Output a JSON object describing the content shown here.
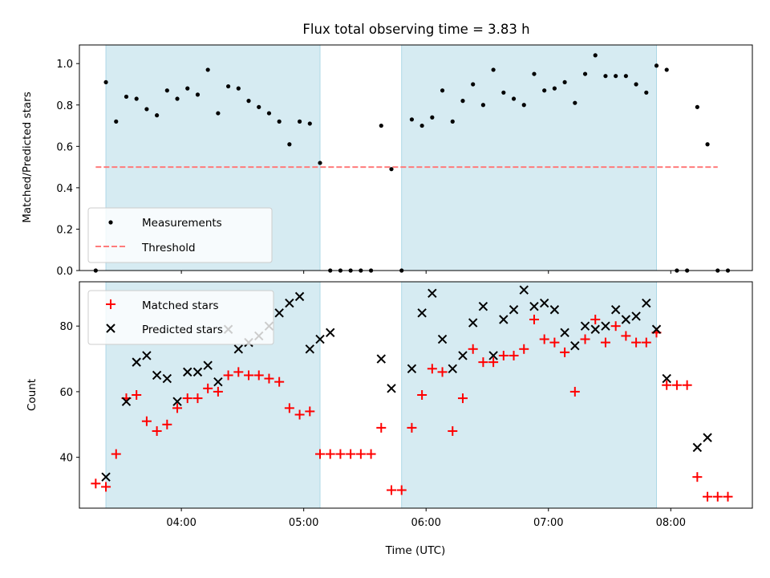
{
  "chart_data": {
    "type": "scatter",
    "title": "Flux total observing time = 3.83 h",
    "xlabel": "Time (UTC)",
    "x_tick_labels": [
      "04:00",
      "05:00",
      "06:00",
      "07:00",
      "08:00"
    ],
    "x_range": [
      "03:10",
      "08:40"
    ],
    "shaded_intervals": [
      [
        "03:23",
        "05:08"
      ],
      [
        "05:48",
        "07:53"
      ]
    ],
    "shade_color": "#add8e6",
    "panels": [
      {
        "ylabel": "Matched/Predicted stars",
        "ylim": [
          0,
          1.09
        ],
        "y_tick_labels": [
          "0.0",
          "0.2",
          "0.4",
          "0.6",
          "0.8",
          "1.0"
        ],
        "legend": {
          "position": "lower left",
          "entries": [
            "Measurements",
            "Threshold"
          ]
        },
        "threshold": {
          "name": "Threshold",
          "value": 0.5,
          "x_from": "03:18",
          "x_to": "08:23",
          "color": "#ff7b7b"
        },
        "series": [
          {
            "name": "Measurements",
            "marker": "dot",
            "color": "#000000",
            "points": [
              [
                "03:18",
                0.0
              ],
              [
                "03:23",
                0.91
              ],
              [
                "03:28",
                0.72
              ],
              [
                "03:33",
                0.84
              ],
              [
                "03:38",
                0.83
              ],
              [
                "03:43",
                0.78
              ],
              [
                "03:48",
                0.75
              ],
              [
                "03:53",
                0.87
              ],
              [
                "03:58",
                0.83
              ],
              [
                "04:03",
                0.88
              ],
              [
                "04:08",
                0.85
              ],
              [
                "04:13",
                0.97
              ],
              [
                "04:18",
                0.76
              ],
              [
                "04:23",
                0.89
              ],
              [
                "04:28",
                0.88
              ],
              [
                "04:33",
                0.82
              ],
              [
                "04:38",
                0.79
              ],
              [
                "04:43",
                0.76
              ],
              [
                "04:48",
                0.72
              ],
              [
                "04:53",
                0.61
              ],
              [
                "04:58",
                0.72
              ],
              [
                "05:03",
                0.71
              ],
              [
                "05:08",
                0.52
              ],
              [
                "05:13",
                0.0
              ],
              [
                "05:18",
                0.0
              ],
              [
                "05:23",
                0.0
              ],
              [
                "05:28",
                0.0
              ],
              [
                "05:33",
                0.0
              ],
              [
                "05:38",
                0.7
              ],
              [
                "05:43",
                0.49
              ],
              [
                "05:48",
                0.0
              ],
              [
                "05:53",
                0.73
              ],
              [
                "05:58",
                0.7
              ],
              [
                "06:03",
                0.74
              ],
              [
                "06:08",
                0.87
              ],
              [
                "06:13",
                0.72
              ],
              [
                "06:18",
                0.82
              ],
              [
                "06:23",
                0.9
              ],
              [
                "06:28",
                0.8
              ],
              [
                "06:33",
                0.97
              ],
              [
                "06:38",
                0.86
              ],
              [
                "06:43",
                0.83
              ],
              [
                "06:48",
                0.8
              ],
              [
                "06:53",
                0.95
              ],
              [
                "06:58",
                0.87
              ],
              [
                "07:03",
                0.88
              ],
              [
                "07:08",
                0.91
              ],
              [
                "07:13",
                0.81
              ],
              [
                "07:18",
                0.95
              ],
              [
                "07:23",
                1.04
              ],
              [
                "07:28",
                0.94
              ],
              [
                "07:33",
                0.94
              ],
              [
                "07:38",
                0.94
              ],
              [
                "07:43",
                0.9
              ],
              [
                "07:48",
                0.86
              ],
              [
                "07:53",
                0.99
              ],
              [
                "07:58",
                0.97
              ],
              [
                "08:03",
                0.0
              ],
              [
                "08:08",
                0.0
              ],
              [
                "08:13",
                0.79
              ],
              [
                "08:18",
                0.61
              ],
              [
                "08:23",
                0.0
              ],
              [
                "08:28",
                0.0
              ]
            ]
          }
        ]
      },
      {
        "ylabel": "Count",
        "ylim": [
          24.5,
          93.5
        ],
        "y_tick_labels": [
          "40",
          "60",
          "80"
        ],
        "legend": {
          "position": "upper left",
          "entries": [
            "Matched stars",
            "Predicted stars"
          ]
        },
        "series": [
          {
            "name": "Matched stars",
            "marker": "plus",
            "color": "#ff0000",
            "points": [
              [
                "03:18",
                32
              ],
              [
                "03:23",
                31
              ],
              [
                "03:28",
                41
              ],
              [
                "03:33",
                58
              ],
              [
                "03:38",
                59
              ],
              [
                "03:43",
                51
              ],
              [
                "03:48",
                48
              ],
              [
                "03:53",
                50
              ],
              [
                "03:58",
                55
              ],
              [
                "04:03",
                58
              ],
              [
                "04:08",
                58
              ],
              [
                "04:13",
                61
              ],
              [
                "04:18",
                60
              ],
              [
                "04:23",
                65
              ],
              [
                "04:28",
                66
              ],
              [
                "04:33",
                65
              ],
              [
                "04:38",
                65
              ],
              [
                "04:43",
                64
              ],
              [
                "04:48",
                63
              ],
              [
                "04:53",
                55
              ],
              [
                "04:58",
                53
              ],
              [
                "05:03",
                54
              ],
              [
                "05:08",
                41
              ],
              [
                "05:13",
                41
              ],
              [
                "05:18",
                41
              ],
              [
                "05:23",
                41
              ],
              [
                "05:28",
                41
              ],
              [
                "05:33",
                41
              ],
              [
                "05:38",
                49
              ],
              [
                "05:43",
                30
              ],
              [
                "05:48",
                30
              ],
              [
                "05:53",
                49
              ],
              [
                "05:58",
                59
              ],
              [
                "06:03",
                67
              ],
              [
                "06:08",
                66
              ],
              [
                "06:13",
                48
              ],
              [
                "06:18",
                58
              ],
              [
                "06:23",
                73
              ],
              [
                "06:28",
                69
              ],
              [
                "06:33",
                69
              ],
              [
                "06:38",
                71
              ],
              [
                "06:43",
                71
              ],
              [
                "06:48",
                73
              ],
              [
                "06:53",
                82
              ],
              [
                "06:58",
                76
              ],
              [
                "07:03",
                75
              ],
              [
                "07:08",
                72
              ],
              [
                "07:13",
                60
              ],
              [
                "07:18",
                76
              ],
              [
                "07:23",
                82
              ],
              [
                "07:28",
                75
              ],
              [
                "07:33",
                80
              ],
              [
                "07:38",
                77
              ],
              [
                "07:43",
                75
              ],
              [
                "07:48",
                75
              ],
              [
                "07:53",
                78
              ],
              [
                "07:58",
                62
              ],
              [
                "08:03",
                62
              ],
              [
                "08:08",
                62
              ],
              [
                "08:13",
                34
              ],
              [
                "08:18",
                28
              ],
              [
                "08:23",
                28
              ],
              [
                "08:28",
                28
              ]
            ]
          },
          {
            "name": "Predicted stars",
            "marker": "x",
            "color": "#000000",
            "points": [
              [
                "03:23",
                34
              ],
              [
                "03:33",
                57
              ],
              [
                "03:38",
                69
              ],
              [
                "03:43",
                71
              ],
              [
                "03:48",
                65
              ],
              [
                "03:53",
                64
              ],
              [
                "03:58",
                57
              ],
              [
                "04:03",
                66
              ],
              [
                "04:08",
                66
              ],
              [
                "04:13",
                68
              ],
              [
                "04:18",
                63
              ],
              [
                "04:23",
                79
              ],
              [
                "04:28",
                73
              ],
              [
                "04:33",
                75
              ],
              [
                "04:38",
                77
              ],
              [
                "04:43",
                80
              ],
              [
                "04:48",
                84
              ],
              [
                "04:53",
                87
              ],
              [
                "04:58",
                89
              ],
              [
                "05:03",
                73
              ],
              [
                "05:08",
                76
              ],
              [
                "05:13",
                78
              ],
              [
                "05:38",
                70
              ],
              [
                "05:43",
                61
              ],
              [
                "05:53",
                67
              ],
              [
                "05:58",
                84
              ],
              [
                "06:03",
                90
              ],
              [
                "06:08",
                76
              ],
              [
                "06:13",
                67
              ],
              [
                "06:18",
                71
              ],
              [
                "06:23",
                81
              ],
              [
                "06:28",
                86
              ],
              [
                "06:33",
                71
              ],
              [
                "06:38",
                82
              ],
              [
                "06:43",
                85
              ],
              [
                "06:48",
                91
              ],
              [
                "06:53",
                86
              ],
              [
                "06:58",
                87
              ],
              [
                "07:03",
                85
              ],
              [
                "07:08",
                78
              ],
              [
                "07:13",
                74
              ],
              [
                "07:18",
                80
              ],
              [
                "07:23",
                79
              ],
              [
                "07:28",
                80
              ],
              [
                "07:33",
                85
              ],
              [
                "07:38",
                82
              ],
              [
                "07:43",
                83
              ],
              [
                "07:48",
                87
              ],
              [
                "07:53",
                79
              ],
              [
                "07:58",
                64
              ],
              [
                "08:13",
                43
              ],
              [
                "08:18",
                46
              ]
            ]
          }
        ]
      }
    ]
  }
}
